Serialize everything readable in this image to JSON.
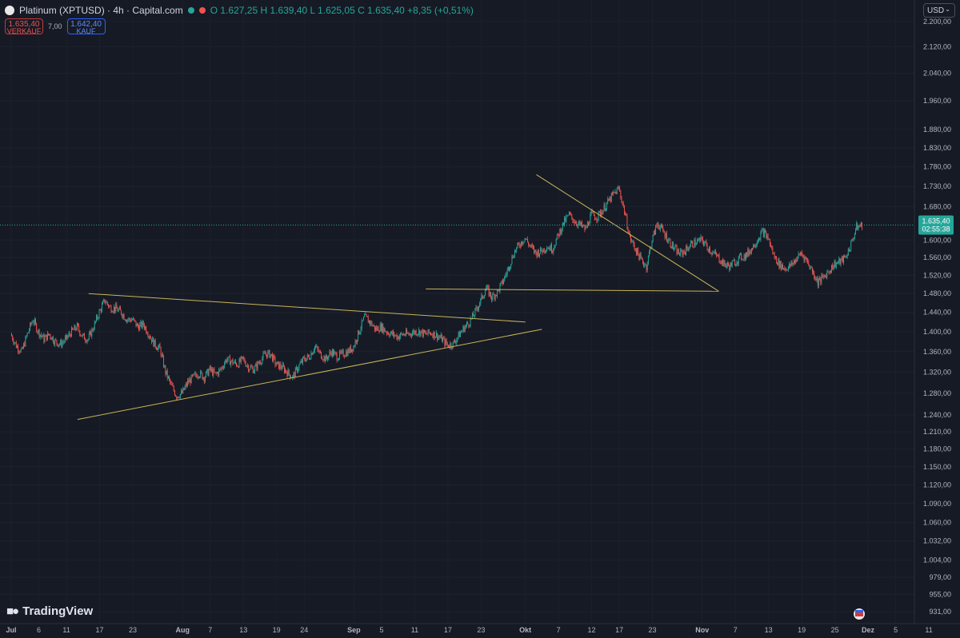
{
  "header": {
    "symbol_title": "Platinum (XPTUSD) · 4h · Capital.com",
    "ohlc": "O 1.627,25  H 1.639,40  L 1.625,05  C 1.635,40  +8,35 (+0,51%)"
  },
  "trade": {
    "sell_price": "1.635,40",
    "sell_label": "VERKAUF",
    "spread": "7,00",
    "buy_price": "1.642,40",
    "buy_label": "KAUF"
  },
  "currency_selector": "USD",
  "branding": "TradingView",
  "current_price": {
    "price_label": "1.635,40",
    "countdown": "02:55:38",
    "value": 1635.4
  },
  "colors": {
    "background": "#161a25",
    "up": "#26a69a",
    "down": "#ef5350",
    "trendline": "#c9b458",
    "axis_text": "#b2b5be"
  },
  "chart_data": {
    "type": "candlestick",
    "timeframe": "4h",
    "x_range": [
      1,
      162
    ],
    "y_scale": "log",
    "y_range": [
      915,
      2270
    ],
    "y_ticks": [
      {
        "v": 2200,
        "l": "2.200,00"
      },
      {
        "v": 2120,
        "l": "2.120,00"
      },
      {
        "v": 2040,
        "l": "2.040,00"
      },
      {
        "v": 1960,
        "l": "1.960,00"
      },
      {
        "v": 1880,
        "l": "1.880,00"
      },
      {
        "v": 1830,
        "l": "1.830,00"
      },
      {
        "v": 1780,
        "l": "1.780,00"
      },
      {
        "v": 1730,
        "l": "1.730,00"
      },
      {
        "v": 1680,
        "l": "1.680,00"
      },
      {
        "v": 1600,
        "l": "1.600,00"
      },
      {
        "v": 1560,
        "l": "1.560,00"
      },
      {
        "v": 1520,
        "l": "1.520,00"
      },
      {
        "v": 1480,
        "l": "1.480,00"
      },
      {
        "v": 1440,
        "l": "1.440,00"
      },
      {
        "v": 1400,
        "l": "1.400,00"
      },
      {
        "v": 1360,
        "l": "1.360,00"
      },
      {
        "v": 1320,
        "l": "1.320,00"
      },
      {
        "v": 1280,
        "l": "1.280,00"
      },
      {
        "v": 1240,
        "l": "1.240,00"
      },
      {
        "v": 1210,
        "l": "1.210,00"
      },
      {
        "v": 1180,
        "l": "1.180,00"
      },
      {
        "v": 1150,
        "l": "1.150,00"
      },
      {
        "v": 1120,
        "l": "1.120,00"
      },
      {
        "v": 1090,
        "l": "1.090,00"
      },
      {
        "v": 1060,
        "l": "1.060,00"
      },
      {
        "v": 1032,
        "l": "1.032,00"
      },
      {
        "v": 1004,
        "l": "1.004,00"
      },
      {
        "v": 979,
        "l": "979,00"
      },
      {
        "v": 955,
        "l": "955,00"
      },
      {
        "v": 931,
        "l": "931,00"
      }
    ],
    "x_ticks": [
      {
        "d": 1,
        "l": "Jul",
        "bold": true
      },
      {
        "d": 6,
        "l": "6"
      },
      {
        "d": 11,
        "l": "11"
      },
      {
        "d": 17,
        "l": "17"
      },
      {
        "d": 23,
        "l": "23"
      },
      {
        "d": 32,
        "l": "Aug",
        "bold": true
      },
      {
        "d": 37,
        "l": "7"
      },
      {
        "d": 43,
        "l": "13"
      },
      {
        "d": 49,
        "l": "19"
      },
      {
        "d": 54,
        "l": "24"
      },
      {
        "d": 63,
        "l": "Sep",
        "bold": true
      },
      {
        "d": 68,
        "l": "5"
      },
      {
        "d": 74,
        "l": "11"
      },
      {
        "d": 80,
        "l": "17"
      },
      {
        "d": 86,
        "l": "23"
      },
      {
        "d": 94,
        "l": "Okt",
        "bold": true
      },
      {
        "d": 100,
        "l": "7"
      },
      {
        "d": 106,
        "l": "12"
      },
      {
        "d": 111,
        "l": "17"
      },
      {
        "d": 117,
        "l": "23"
      },
      {
        "d": 126,
        "l": "Nov",
        "bold": true
      },
      {
        "d": 132,
        "l": "7"
      },
      {
        "d": 138,
        "l": "13"
      },
      {
        "d": 144,
        "l": "19"
      },
      {
        "d": 150,
        "l": "25"
      },
      {
        "d": 156,
        "l": "Dez",
        "bold": true
      },
      {
        "d": 161,
        "l": "5"
      },
      {
        "d": 167,
        "l": "11"
      }
    ],
    "price_path": [
      [
        1,
        1395
      ],
      [
        2,
        1372
      ],
      [
        3,
        1360
      ],
      [
        4,
        1395
      ],
      [
        5,
        1425
      ],
      [
        6,
        1400
      ],
      [
        7,
        1385
      ],
      [
        8,
        1395
      ],
      [
        9,
        1380
      ],
      [
        10,
        1375
      ],
      [
        11,
        1385
      ],
      [
        12,
        1400
      ],
      [
        13,
        1410
      ],
      [
        14,
        1390
      ],
      [
        15,
        1385
      ],
      [
        16,
        1410
      ],
      [
        17,
        1440
      ],
      [
        18,
        1465
      ],
      [
        19,
        1450
      ],
      [
        20,
        1448
      ],
      [
        21,
        1440
      ],
      [
        22,
        1425
      ],
      [
        23,
        1425
      ],
      [
        24,
        1410
      ],
      [
        25,
        1415
      ],
      [
        26,
        1395
      ],
      [
        27,
        1375
      ],
      [
        28,
        1365
      ],
      [
        29,
        1320
      ],
      [
        30,
        1295
      ],
      [
        31,
        1275
      ],
      [
        32,
        1280
      ],
      [
        33,
        1300
      ],
      [
        34,
        1310
      ],
      [
        35,
        1318
      ],
      [
        36,
        1310
      ],
      [
        37,
        1325
      ],
      [
        38,
        1315
      ],
      [
        39,
        1325
      ],
      [
        40,
        1345
      ],
      [
        41,
        1340
      ],
      [
        42,
        1335
      ],
      [
        43,
        1345
      ],
      [
        44,
        1330
      ],
      [
        45,
        1325
      ],
      [
        46,
        1340
      ],
      [
        47,
        1355
      ],
      [
        48,
        1355
      ],
      [
        49,
        1335
      ],
      [
        50,
        1330
      ],
      [
        51,
        1320
      ],
      [
        52,
        1310
      ],
      [
        53,
        1330
      ],
      [
        54,
        1345
      ],
      [
        55,
        1350
      ],
      [
        56,
        1370
      ],
      [
        57,
        1355
      ],
      [
        58,
        1345
      ],
      [
        59,
        1360
      ],
      [
        60,
        1350
      ],
      [
        61,
        1355
      ],
      [
        62,
        1360
      ],
      [
        63,
        1370
      ],
      [
        64,
        1400
      ],
      [
        65,
        1430
      ],
      [
        66,
        1420
      ],
      [
        67,
        1405
      ],
      [
        68,
        1410
      ],
      [
        69,
        1400
      ],
      [
        70,
        1395
      ],
      [
        71,
        1390
      ],
      [
        72,
        1395
      ],
      [
        73,
        1395
      ],
      [
        74,
        1400
      ],
      [
        75,
        1400
      ],
      [
        76,
        1395
      ],
      [
        77,
        1398
      ],
      [
        78,
        1393
      ],
      [
        79,
        1385
      ],
      [
        80,
        1373
      ],
      [
        81,
        1375
      ],
      [
        82,
        1392
      ],
      [
        83,
        1408
      ],
      [
        84,
        1420
      ],
      [
        85,
        1440
      ],
      [
        86,
        1465
      ],
      [
        87,
        1492
      ],
      [
        88,
        1472
      ],
      [
        89,
        1483
      ],
      [
        90,
        1505
      ],
      [
        91,
        1535
      ],
      [
        92,
        1570
      ],
      [
        93,
        1590
      ],
      [
        94,
        1605
      ],
      [
        95,
        1585
      ],
      [
        96,
        1570
      ],
      [
        97,
        1575
      ],
      [
        98,
        1585
      ],
      [
        99,
        1580
      ],
      [
        100,
        1610
      ],
      [
        101,
        1640
      ],
      [
        102,
        1660
      ],
      [
        103,
        1645
      ],
      [
        104,
        1635
      ],
      [
        105,
        1625
      ],
      [
        106,
        1660
      ],
      [
        107,
        1655
      ],
      [
        108,
        1670
      ],
      [
        109,
        1690
      ],
      [
        110,
        1710
      ],
      [
        111,
        1725
      ],
      [
        112,
        1670
      ],
      [
        113,
        1605
      ],
      [
        114,
        1580
      ],
      [
        115,
        1555
      ],
      [
        116,
        1540
      ],
      [
        117,
        1600
      ],
      [
        118,
        1640
      ],
      [
        119,
        1620
      ],
      [
        120,
        1600
      ],
      [
        121,
        1580
      ],
      [
        122,
        1568
      ],
      [
        123,
        1575
      ],
      [
        124,
        1590
      ],
      [
        125,
        1595
      ],
      [
        126,
        1600
      ],
      [
        127,
        1585
      ],
      [
        128,
        1570
      ],
      [
        129,
        1560
      ],
      [
        130,
        1545
      ],
      [
        131,
        1540
      ],
      [
        132,
        1550
      ],
      [
        133,
        1560
      ],
      [
        134,
        1565
      ],
      [
        135,
        1580
      ],
      [
        136,
        1600
      ],
      [
        137,
        1620
      ],
      [
        138,
        1605
      ],
      [
        139,
        1565
      ],
      [
        140,
        1545
      ],
      [
        141,
        1535
      ],
      [
        142,
        1540
      ],
      [
        143,
        1555
      ],
      [
        144,
        1570
      ],
      [
        145,
        1553
      ],
      [
        146,
        1530
      ],
      [
        147,
        1505
      ],
      [
        148,
        1515
      ],
      [
        149,
        1530
      ],
      [
        150,
        1545
      ],
      [
        151,
        1550
      ],
      [
        152,
        1560
      ],
      [
        153,
        1590
      ],
      [
        154,
        1630
      ],
      [
        155,
        1635
      ]
    ],
    "trendlines": [
      {
        "from": [
          15,
          1480
        ],
        "to": [
          94,
          1420
        ]
      },
      {
        "from": [
          13,
          1232
        ],
        "to": [
          97,
          1405
        ]
      },
      {
        "from": [
          76,
          1490
        ],
        "to": [
          129,
          1485
        ]
      },
      {
        "from": [
          96,
          1760
        ],
        "to": [
          129,
          1485
        ]
      }
    ]
  }
}
